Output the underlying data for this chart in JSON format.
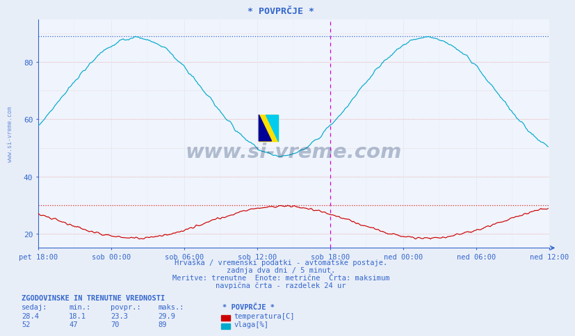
{
  "title": "* POVPRČJE *",
  "bg_color": "#e8eef8",
  "plot_bg": "#f0f4fc",
  "xlabel_ticks": [
    "pet 18:00",
    "sob 00:00",
    "sob 06:00",
    "sob 12:00",
    "sob 18:00",
    "ned 00:00",
    "ned 06:00",
    "ned 12:00"
  ],
  "ylabel_ticks": [
    20,
    40,
    60,
    80
  ],
  "ylim": [
    15,
    95
  ],
  "xlim": [
    0,
    504
  ],
  "temp_color": "#cc0000",
  "humid_color": "#00aacc",
  "max_line_color": "#dd4444",
  "top_dotted_color": "#3366cc",
  "vline_color": "#cc00cc",
  "temp_max": 29.9,
  "temp_min": 18.1,
  "temp_avg": 23.3,
  "temp_now": 28.4,
  "humid_max": 89,
  "humid_min": 47,
  "humid_avg": 70,
  "humid_now": 52,
  "footer_line1": "Hrvaška / vremenski podatki - avtomatske postaje.",
  "footer_line2": "zadnja dva dni / 5 minut.",
  "footer_line3": "Meritve: trenutne  Enote: metrične  Črta: maksimum",
  "footer_line4": "navpična črta - razdelek 24 ur",
  "label_title": "ZGODOVINSKE IN TRENUTNE VREDNOSTI",
  "col_sedaj": "sedaj:",
  "col_min": "min.:",
  "col_povpr": "povpr.:",
  "col_maks": "maks.:",
  "col_star": "* POVPRČJE *",
  "series_labels": [
    "temperatura[C]",
    "vlaga[%]"
  ],
  "watermark": "www.si-vreme.com",
  "watermark_color": "#1a3a6a",
  "axis_text_color": "#3366cc",
  "label_color": "#3366cc"
}
